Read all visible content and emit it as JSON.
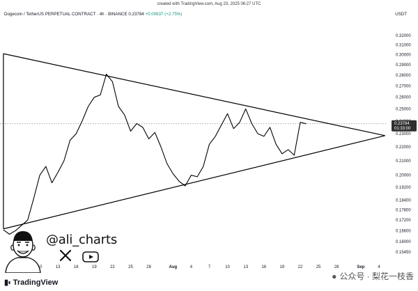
{
  "created": "created with TradingView.com, Aug 23, 2025 06:27 UTC",
  "header": {
    "symbol": "Dogecoin / TetherUS PERPETUAL CONTRACT · 4h · BINANCE",
    "price": "0.23784",
    "change": "+0.00637 (+2.75%)"
  },
  "currency": "USDT",
  "price_box": {
    "price": "0.23784",
    "countdown": "01:33:00"
  },
  "handle": "@ali_charts",
  "logo": "TradingView",
  "watermark": "公众号 · 梨花一枝香",
  "colors": {
    "line": "#000000",
    "axis_text": "#131722",
    "price_box": "#2f2f2f",
    "dotted_price_line": "#8a8a8a"
  },
  "icons": {
    "x": "x-logo-icon",
    "youtube": "youtube-icon",
    "avatar": "cartoon-avatar"
  },
  "chart_data": {
    "type": "line",
    "yscale": "log",
    "ylim": [
      0.15,
      0.33
    ],
    "y_ticks": [
      "0.32000",
      "0.31000",
      "0.30000",
      "0.29000",
      "0.28000",
      "0.27000",
      "0.26000",
      "0.25000",
      "0.24000",
      "0.23000",
      "0.22000",
      "0.21000",
      "0.20000",
      "0.19200",
      "0.18400",
      "0.17800",
      "0.17200",
      "0.16600",
      "0.16000",
      "0.15450"
    ],
    "x_ticks": [
      "7",
      "10",
      "13",
      "16",
      "19",
      "22",
      "25",
      "28",
      "Aug",
      "4",
      "7",
      "10",
      "13",
      "16",
      "19",
      "22",
      "25",
      "28",
      "Sep",
      "4"
    ],
    "series": [
      {
        "x": [
          "Jul 4",
          "Jul 5",
          "Jul 6",
          "Jul 7",
          "Jul 8",
          "Jul 9",
          "Jul 10",
          "Jul 11",
          "Jul 12",
          "Jul 13",
          "Jul 14",
          "Jul 15",
          "Jul 16",
          "Jul 17",
          "Jul 18",
          "Jul 19",
          "Jul 20",
          "Jul 21",
          "Jul 22",
          "Jul 23",
          "Jul 24",
          "Jul 25",
          "Jul 26",
          "Jul 27",
          "Jul 28",
          "Jul 29",
          "Jul 30",
          "Jul 31",
          "Aug 1",
          "Aug 2",
          "Aug 3",
          "Aug 4",
          "Aug 5",
          "Aug 6",
          "Aug 7",
          "Aug 8",
          "Aug 9",
          "Aug 10",
          "Aug 11",
          "Aug 12",
          "Aug 13",
          "Aug 14",
          "Aug 15",
          "Aug 16",
          "Aug 17",
          "Aug 18",
          "Aug 19",
          "Aug 20",
          "Aug 21",
          "Aug 22",
          "Aug 23"
        ],
        "values": [
          0.1665,
          0.164,
          0.166,
          0.169,
          0.172,
          0.185,
          0.2,
          0.206,
          0.195,
          0.202,
          0.21,
          0.225,
          0.23,
          0.24,
          0.252,
          0.26,
          0.262,
          0.281,
          0.274,
          0.252,
          0.245,
          0.232,
          0.238,
          0.235,
          0.226,
          0.231,
          0.22,
          0.208,
          0.201,
          0.196,
          0.193,
          0.2,
          0.199,
          0.206,
          0.222,
          0.228,
          0.237,
          0.246,
          0.234,
          0.239,
          0.25,
          0.238,
          0.23,
          0.228,
          0.235,
          0.222,
          0.215,
          0.218,
          0.214,
          0.239,
          0.2378
        ]
      }
    ],
    "annotations": [
      {
        "type": "trendline",
        "from": [
          "Jul 4",
          0.301
        ],
        "to": [
          "Sep 5",
          0.2285
        ]
      },
      {
        "type": "trendline",
        "from": [
          "Jul 4",
          0.167
        ],
        "to": [
          "Sep 5",
          0.2285
        ]
      }
    ]
  }
}
